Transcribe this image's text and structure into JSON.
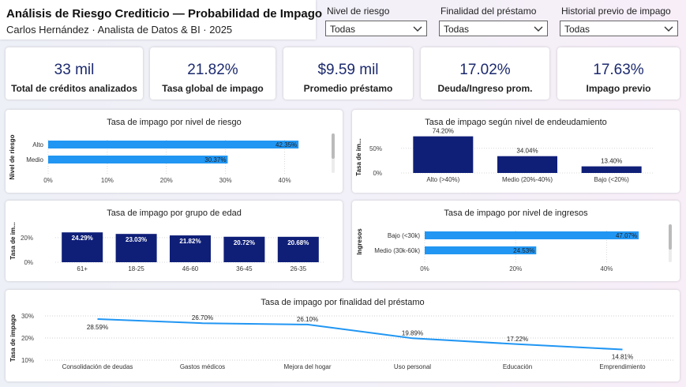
{
  "header": {
    "title": "Análisis de Riesgo Crediticio — Probabilidad de Impago",
    "subtitle": "Carlos Hernández · Analista de Datos & BI · 2025"
  },
  "filters": [
    {
      "label": "Nivel de riesgo",
      "value": "Todas"
    },
    {
      "label": "Finalidad del préstamo",
      "value": "Todas"
    },
    {
      "label": "Historial previo de impago",
      "value": "Todas"
    }
  ],
  "kpis": [
    {
      "value": "33 mil",
      "label": "Total de créditos analizados"
    },
    {
      "value": "21.82%",
      "label": "Tasa global de impago"
    },
    {
      "value": "$9.59 mil",
      "label": "Promedio préstamo"
    },
    {
      "value": "17.02%",
      "label": "Deuda/Ingreso prom."
    },
    {
      "value": "17.63%",
      "label": "Impago previo"
    }
  ],
  "colors": {
    "bar_light": "#2196f3",
    "bar_dark": "#0f1f78",
    "kpi_text": "#1c2a6e"
  },
  "chart_data": [
    {
      "id": "riesgo",
      "type": "bar",
      "orientation": "horizontal",
      "title": "Tasa de impago por nivel de riesgo",
      "ylabel": "Nivel de riesgo",
      "categories": [
        "Alto",
        "Medio"
      ],
      "values": [
        42.35,
        30.37
      ],
      "labels": [
        "42.35%",
        "30.37%"
      ],
      "xticks": [
        "0%",
        "10%",
        "20%",
        "30%",
        "40%"
      ],
      "xlim": [
        0,
        45
      ]
    },
    {
      "id": "endeudamiento",
      "type": "bar",
      "orientation": "vertical",
      "title": "Tasa de impago según nivel de endeudamiento",
      "ylabel": "Tasa de im...",
      "categories": [
        "Alto (>40%)",
        "Medio (20%-40%)",
        "Bajo (<20%)"
      ],
      "values": [
        74.2,
        34.04,
        13.4
      ],
      "labels": [
        "74.20%",
        "34.04%",
        "13.40%"
      ],
      "yticks": [
        "0%",
        "50%"
      ],
      "ylim": [
        0,
        80
      ]
    },
    {
      "id": "edad",
      "type": "bar",
      "orientation": "vertical",
      "title": "Tasa de impago por grupo de edad",
      "ylabel": "Tasa de im...",
      "categories": [
        "61+",
        "18-25",
        "46-60",
        "36-45",
        "26-35"
      ],
      "values": [
        24.29,
        23.03,
        21.82,
        20.72,
        20.68
      ],
      "labels": [
        "24.29%",
        "23.03%",
        "21.82%",
        "20.72%",
        "20.68%"
      ],
      "yticks": [
        "0%",
        "20%"
      ],
      "ylim": [
        0,
        27
      ]
    },
    {
      "id": "ingresos",
      "type": "bar",
      "orientation": "horizontal",
      "title": "Tasa de impago por nivel de ingresos",
      "ylabel": "Ingresos",
      "categories": [
        "Bajo (<30k)",
        "Medio (30k-60k)"
      ],
      "values": [
        47.07,
        24.53
      ],
      "labels": [
        "47.07%",
        "24.53%"
      ],
      "xticks": [
        "0%",
        "20%",
        "40%"
      ],
      "xlim": [
        0,
        50
      ]
    },
    {
      "id": "finalidad",
      "type": "line",
      "title": "Tasa de impago por finalidad del préstamo",
      "ylabel": "Tasa de impago",
      "categories": [
        "Consolidación de deudas",
        "Gastos médicos",
        "Mejora del hogar",
        "Uso personal",
        "Educación",
        "Emprendimiento"
      ],
      "values": [
        28.59,
        26.7,
        26.1,
        19.89,
        17.22,
        14.81
      ],
      "labels": [
        "28.59%",
        "26.70%",
        "26.10%",
        "19.89%",
        "17.22%",
        "14.81%"
      ],
      "yticks": [
        "10%",
        "20%",
        "30%"
      ],
      "ylim": [
        10,
        30
      ]
    }
  ]
}
